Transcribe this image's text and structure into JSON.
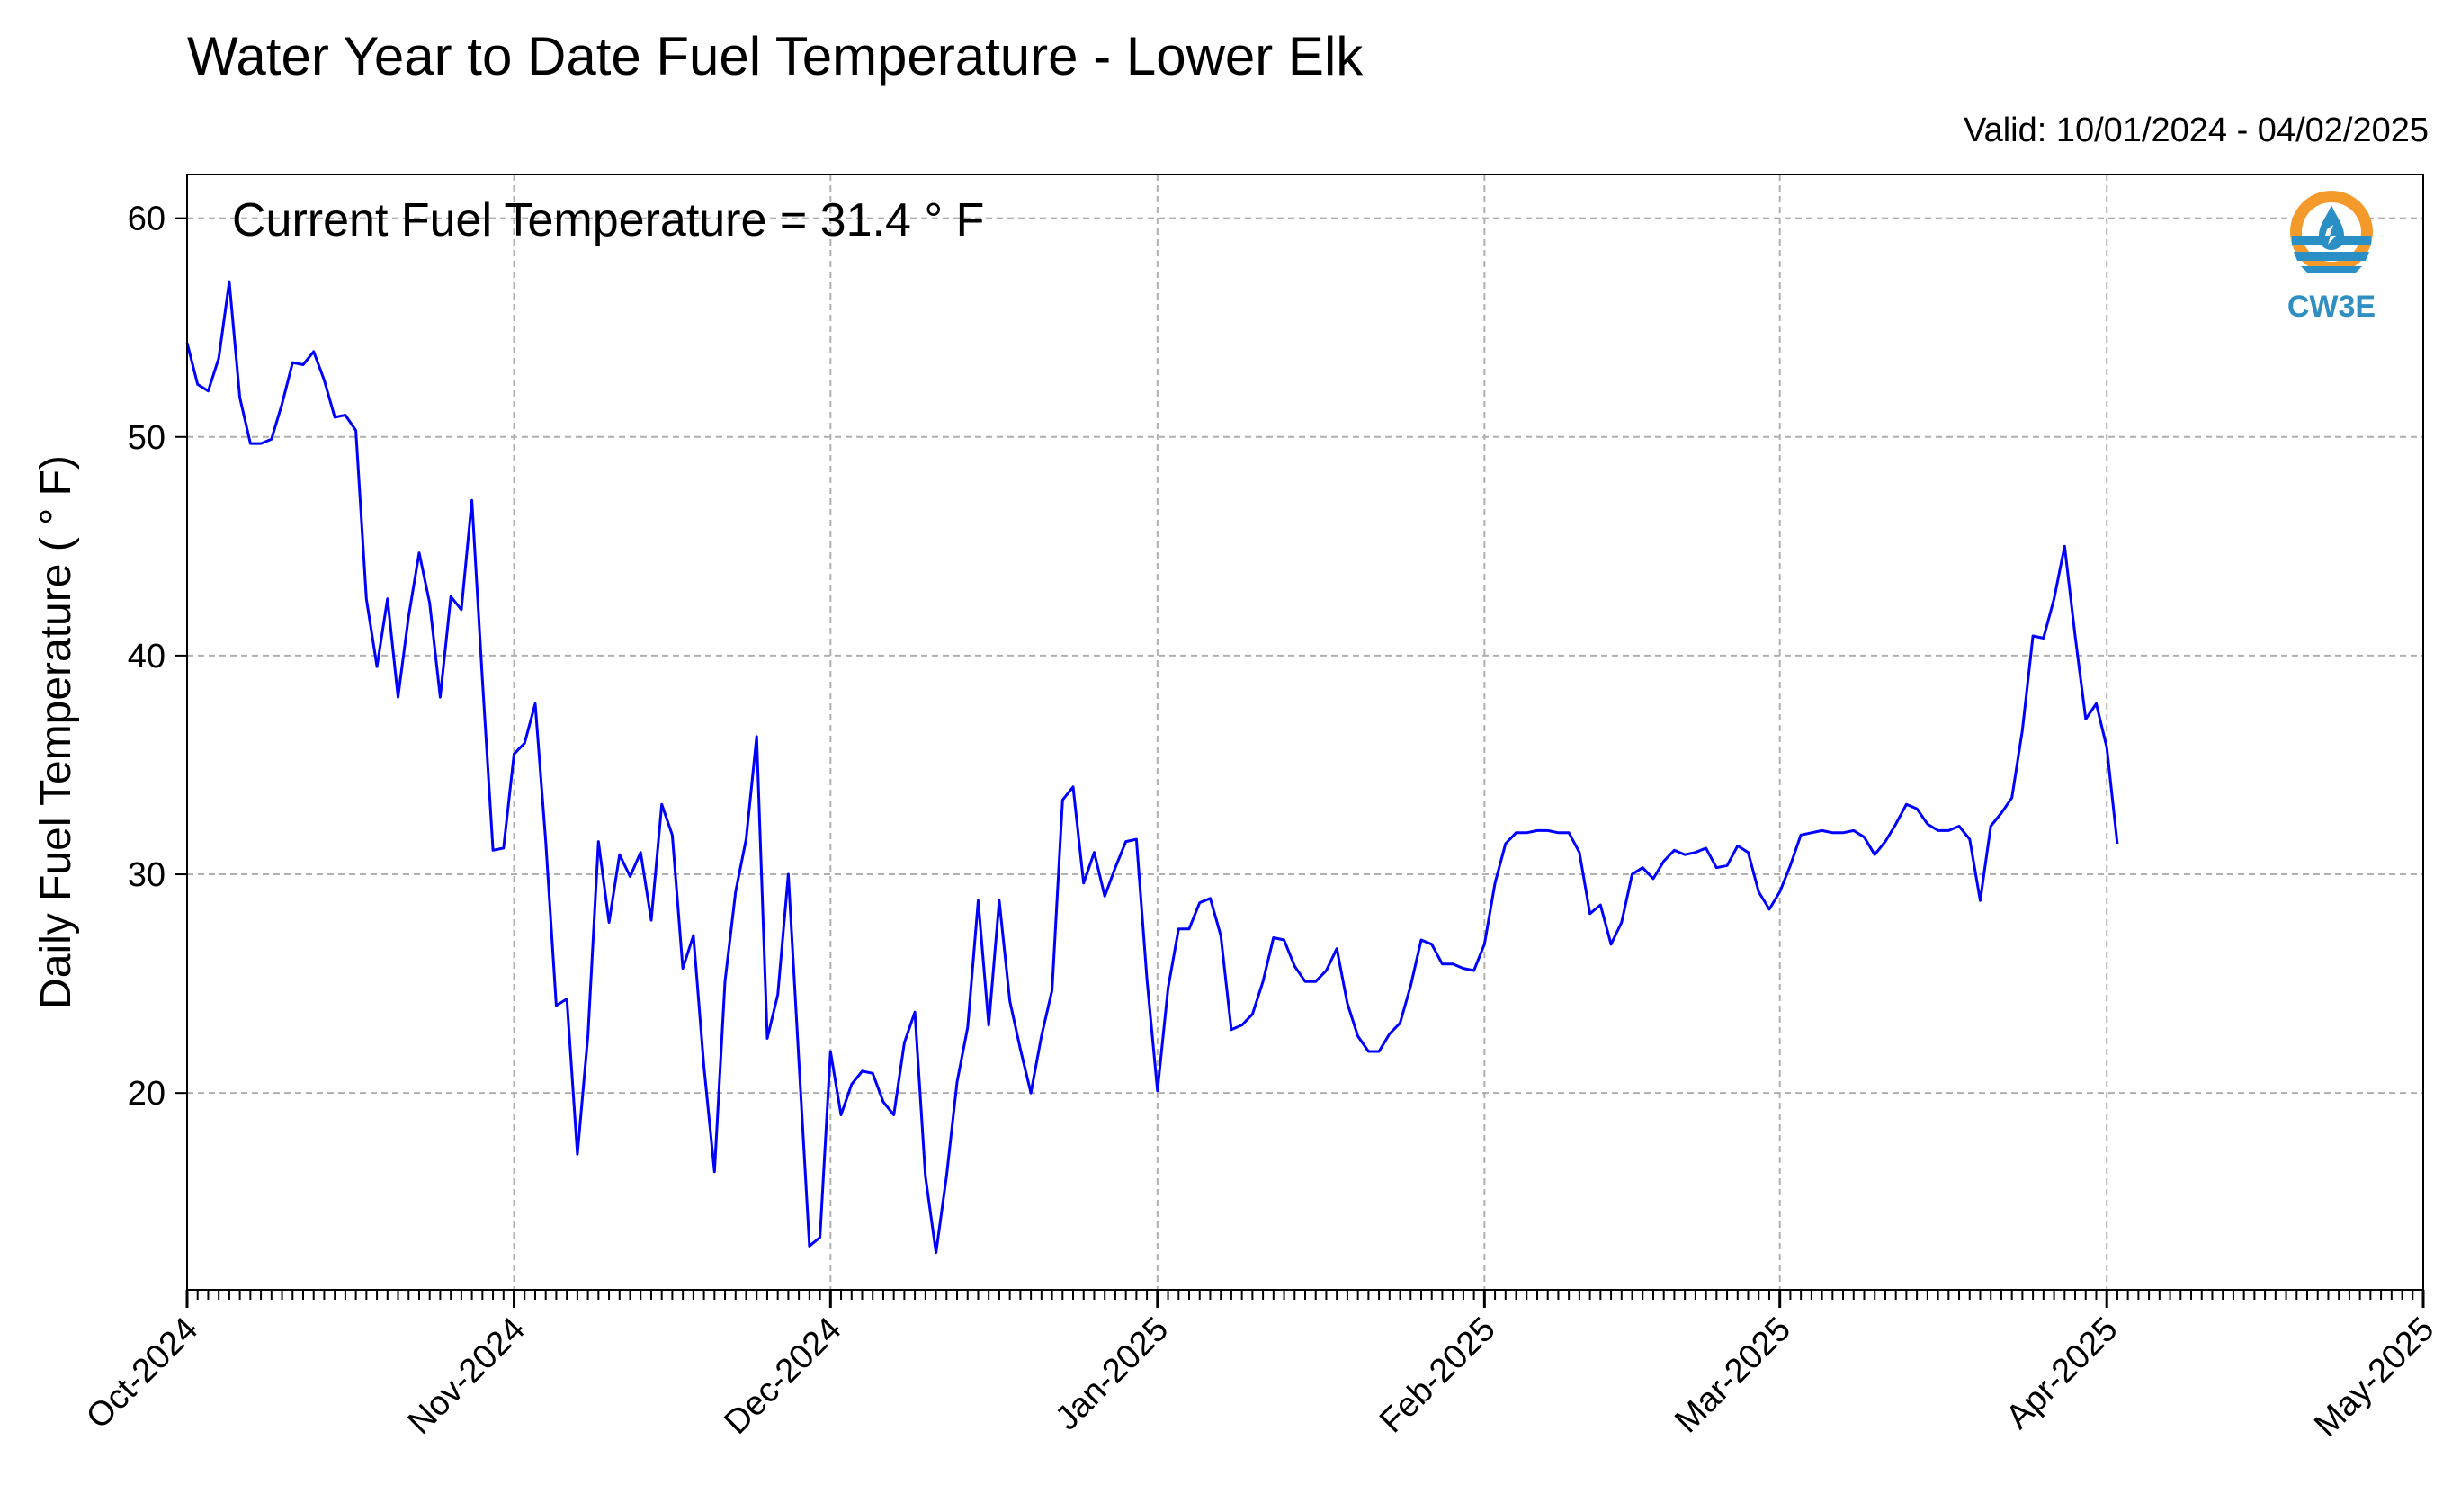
{
  "header": {
    "title": "Water Year to Date Fuel Temperature - Lower Elk",
    "valid": "Valid: 10/01/2024 - 04/02/2025"
  },
  "logo": {
    "text": "CW3E",
    "icon": "water-drop-logo-icon",
    "colors": {
      "ring": "#f39a2b",
      "water": "#2a8fc4",
      "text": "#2f8fc0"
    }
  },
  "colors": {
    "line": "#0000ff",
    "grid": "#b0b0b0",
    "axes": "#000000"
  },
  "chart_data": {
    "type": "line",
    "ylabel": "Daily Fuel Temperature ( ° F)",
    "annotation": "Current Fuel Temperature = 31.4  ° F",
    "xlim": [
      "2024-10-01",
      "2025-05-01"
    ],
    "ylim": [
      11,
      62
    ],
    "yticks": [
      20,
      30,
      40,
      50,
      60
    ],
    "xticks": [
      {
        "date": "2024-10-01",
        "label": "Oct-2024"
      },
      {
        "date": "2024-11-01",
        "label": "Nov-2024"
      },
      {
        "date": "2024-12-01",
        "label": "Dec-2024"
      },
      {
        "date": "2025-01-01",
        "label": "Jan-2025"
      },
      {
        "date": "2025-02-01",
        "label": "Feb-2025"
      },
      {
        "date": "2025-03-01",
        "label": "Mar-2025"
      },
      {
        "date": "2025-04-01",
        "label": "Apr-2025"
      },
      {
        "date": "2025-05-01",
        "label": "May-2025"
      }
    ],
    "grid": true,
    "x_start": "2024-10-01",
    "x_step": "1 day",
    "values": [
      54.3,
      52.4,
      52.1,
      53.6,
      57.1,
      51.8,
      49.7,
      49.7,
      49.9,
      51.5,
      53.4,
      53.3,
      53.9,
      52.6,
      50.9,
      51.0,
      50.3,
      42.6,
      39.5,
      42.6,
      38.1,
      41.8,
      44.7,
      42.4,
      38.1,
      42.7,
      42.1,
      47.1,
      38.9,
      31.1,
      31.2,
      35.5,
      36.0,
      37.8,
      31.5,
      24.0,
      24.3,
      17.2,
      22.6,
      31.5,
      27.8,
      30.9,
      29.9,
      31.0,
      27.9,
      33.2,
      31.8,
      25.7,
      27.2,
      21.2,
      16.4,
      25.1,
      29.2,
      31.6,
      36.3,
      22.5,
      24.5,
      30.0,
      21.5,
      13.0,
      13.4,
      21.9,
      19.0,
      20.4,
      21.0,
      20.9,
      19.6,
      19.0,
      22.3,
      23.7,
      16.2,
      12.7,
      16.2,
      20.5,
      23.0,
      28.8,
      23.1,
      28.8,
      24.2,
      22.0,
      20.0,
      22.6,
      24.7,
      33.4,
      34.0,
      29.6,
      31.0,
      29.0,
      30.3,
      31.5,
      31.6,
      25.2,
      20.1,
      24.8,
      27.5,
      27.5,
      28.7,
      28.9,
      27.2,
      22.9,
      23.1,
      23.6,
      25.1,
      27.1,
      27.0,
      25.8,
      25.1,
      25.1,
      25.6,
      26.6,
      24.1,
      22.6,
      21.9,
      21.9,
      22.7,
      23.2,
      24.9,
      27.0,
      26.8,
      25.9,
      25.9,
      25.7,
      25.6,
      26.8,
      29.6,
      31.4,
      31.9,
      31.9,
      32.0,
      32.0,
      31.9,
      31.9,
      31.0,
      28.2,
      28.6,
      26.8,
      27.8,
      30.0,
      30.3,
      29.8,
      30.6,
      31.1,
      30.9,
      31.0,
      31.2,
      30.3,
      30.4,
      31.3,
      31.0,
      29.2,
      28.4,
      29.2,
      30.4,
      31.8,
      31.9,
      32.0,
      31.9,
      31.9,
      32.0,
      31.7,
      30.9,
      31.5,
      32.3,
      33.2,
      33.0,
      32.3,
      32.0,
      32.0,
      32.2,
      31.6,
      28.8,
      32.2,
      32.8,
      33.5,
      36.6,
      40.9,
      40.8,
      42.6,
      45.0,
      40.9,
      37.1,
      37.8,
      35.8,
      31.4
    ]
  }
}
